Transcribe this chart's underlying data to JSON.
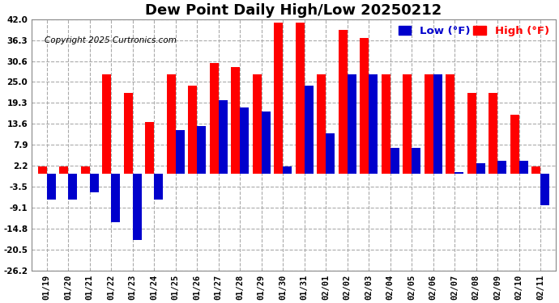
{
  "title": "Dew Point Daily High/Low 20250212",
  "copyright": "Copyright 2025 Curtronics.com",
  "legend_low": "Low (°F)",
  "legend_high": "High (°F)",
  "dates": [
    "01/19",
    "01/20",
    "01/21",
    "01/22",
    "01/23",
    "01/24",
    "01/25",
    "01/26",
    "01/27",
    "01/28",
    "01/29",
    "01/30",
    "01/31",
    "02/01",
    "02/02",
    "02/03",
    "02/04",
    "02/05",
    "02/06",
    "02/07",
    "02/08",
    "02/09",
    "02/10",
    "02/11"
  ],
  "high_values": [
    2.0,
    2.0,
    2.0,
    27.0,
    22.0,
    14.0,
    27.0,
    24.0,
    30.0,
    29.0,
    27.0,
    41.0,
    41.0,
    27.0,
    39.0,
    37.0,
    27.0,
    27.0,
    27.0,
    27.0,
    22.0,
    22.0,
    16.0,
    2.0
  ],
  "low_values": [
    -7.0,
    -7.0,
    -5.0,
    -13.0,
    -18.0,
    -7.0,
    12.0,
    13.0,
    20.0,
    18.0,
    17.0,
    2.0,
    24.0,
    11.0,
    27.0,
    27.0,
    7.0,
    7.0,
    27.0,
    0.5,
    3.0,
    3.5,
    3.5,
    -8.5
  ],
  "high_color": "#ff0000",
  "low_color": "#0000cc",
  "ylim_min": -26.2,
  "ylim_max": 42.0,
  "yticks": [
    42.0,
    36.3,
    30.6,
    25.0,
    19.3,
    13.6,
    7.9,
    2.2,
    -3.5,
    -9.1,
    -14.8,
    -20.5,
    -26.2
  ],
  "figure_bg": "#ffffff",
  "plot_bg": "#ffffff",
  "grid_color": "#aaaaaa",
  "bar_width": 0.42,
  "title_fontsize": 13,
  "tick_fontsize": 7.5,
  "legend_fontsize": 9.5
}
